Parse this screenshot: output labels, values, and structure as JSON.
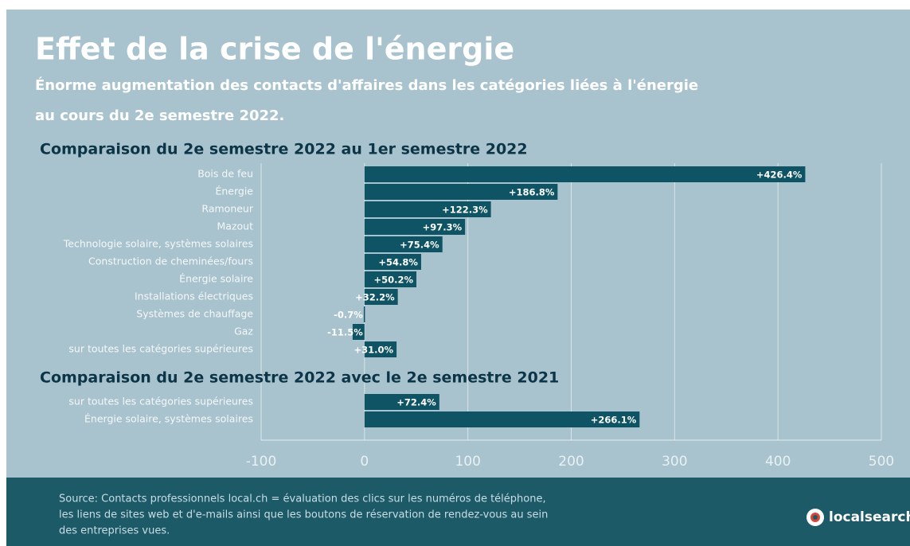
{
  "chart_data": {
    "type": "bar",
    "orientation": "horizontal",
    "title": "Effet de la crise de l'énergie",
    "subtitle": [
      "Énorme augmentation des contacts d'affaires dans les catégories liées à l'énergie",
      "au cours du 2e semestre 2022."
    ],
    "color": "#0f5464",
    "grid": true,
    "xlim": [
      -100,
      500
    ],
    "xticks": [
      -100,
      0,
      100,
      200,
      300,
      400,
      500
    ],
    "sections": [
      {
        "title": "Comparaison du 2e semestre 2022 au 1er semestre 2022",
        "categories": [
          "Bois de feu",
          "Énergie",
          "Ramoneur",
          "Mazout",
          "Technologie solaire, systèmes solaires",
          "Construction de cheminées/fours",
          "Énergie solaire",
          "Installations électriques",
          "Systèmes de chauffage",
          "Gaz",
          "sur toutes les catégories supérieures"
        ],
        "values": [
          426.4,
          186.8,
          122.3,
          97.3,
          75.4,
          54.8,
          50.2,
          32.2,
          -0.7,
          -11.5,
          31.0
        ],
        "value_labels": [
          "+426.4%",
          "+186.8%",
          "+122.3%",
          "+97.3%",
          "+75.4%",
          "+54.8%",
          "+50.2%",
          "+32.2%",
          "-0.7%",
          "-11.5%",
          "+31.0%"
        ]
      },
      {
        "title": "Comparaison du 2e semestre 2022 avec le 2e semestre 2021",
        "categories": [
          "sur toutes les catégories supérieures",
          "Énergie solaire, systèmes solaires"
        ],
        "values": [
          72.4,
          266.1
        ],
        "value_labels": [
          "+72.4%",
          "+266.1%"
        ]
      }
    ],
    "source": [
      "Source: Contacts professionnels local.ch = évaluation des clics sur les numéros de téléphone,",
      "les liens de sites web et d'e-mails ainsi que les boutons de réservation de rendez-vous au sein",
      "des entreprises vues."
    ],
    "logo": "localsearch"
  }
}
